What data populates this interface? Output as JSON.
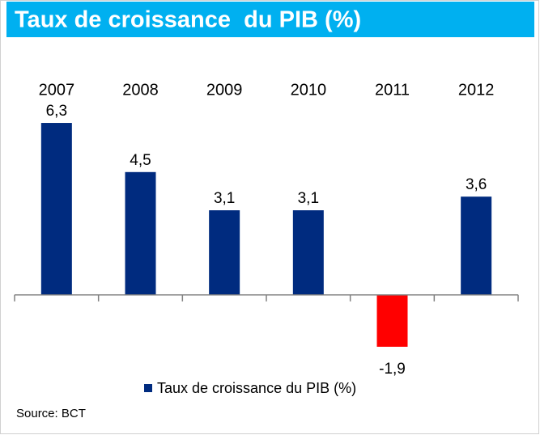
{
  "chart_data": {
    "type": "bar",
    "title": "Taux de croissance  du PIB (%)",
    "categories": [
      "2007",
      "2008",
      "2009",
      "2010",
      "2011",
      "2012"
    ],
    "series": [
      {
        "name": "Taux de croissance du PIB (%)",
        "color": "#002b7f",
        "values": [
          6.3,
          4.5,
          3.1,
          3.1,
          -1.9,
          3.6
        ],
        "value_labels": [
          "6,3",
          "4,5",
          "3,1",
          "3,1",
          "-1,9",
          "3,6"
        ],
        "bar_colors": [
          "#002b7f",
          "#002b7f",
          "#002b7f",
          "#002b7f",
          "#ff0000",
          "#002b7f"
        ]
      }
    ],
    "ylim": [
      -3,
      7
    ],
    "source": "Source: BCT"
  }
}
